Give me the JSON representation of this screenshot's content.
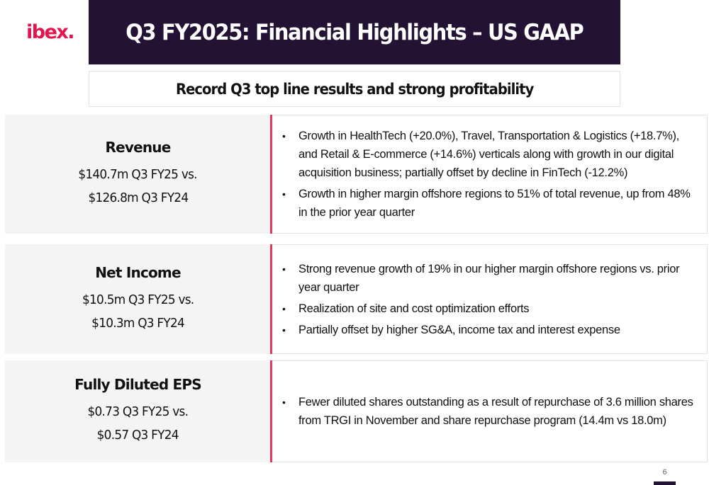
{
  "brand": {
    "logo_text": "ibex.",
    "primary_color": "#231233",
    "accent_color": "#e4144e",
    "divider_color": "#e8375f"
  },
  "slide": {
    "title": "Q3 FY2025: Financial Highlights – US GAAP",
    "subtitle": "Record Q3 top line results and strong profitability",
    "page_number": "6"
  },
  "sections": [
    {
      "title": "Revenue",
      "line1": "$140.7m Q3 FY25 vs.",
      "line2": "$126.8m Q3 FY24",
      "bullets": [
        "Growth in HealthTech (+20.0%), Travel, Transportation & Logistics (+18.7%), and Retail & E-commerce (+14.6%) verticals along with growth in our digital acquisition business; partially offset by decline in  FinTech (-12.2%)",
        "Growth in higher margin offshore regions to 51% of total revenue, up from 48% in the prior year quarter"
      ]
    },
    {
      "title": "Net Income",
      "line1": "$10.5m Q3 FY25 vs.",
      "line2": "$10.3m Q3 FY24",
      "bullets": [
        "Strong revenue growth of 19% in our higher margin offshore regions vs. prior year quarter",
        "Realization of site and cost optimization efforts",
        "Partially offset by higher SG&A, income tax and interest expense"
      ]
    },
    {
      "title": "Fully Diluted EPS",
      "line1": "$0.73 Q3 FY25 vs.",
      "line2": "$0.57 Q3 FY24",
      "bullets": [
        "Fewer diluted shares outstanding as a result of repurchase of 3.6 million shares from TRGI in November and share repurchase program (14.4m vs 18.0m)"
      ]
    }
  ]
}
